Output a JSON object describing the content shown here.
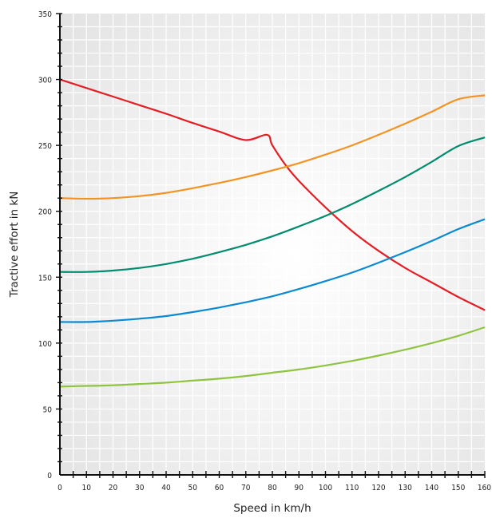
{
  "chart_data": {
    "type": "line",
    "title": "",
    "xlabel": "Speed in km/h",
    "ylabel": "Tractive effort in kN",
    "xlim": [
      0,
      160
    ],
    "ylim": [
      0,
      350
    ],
    "x_ticks": [
      0,
      10,
      20,
      30,
      40,
      50,
      60,
      70,
      80,
      90,
      100,
      110,
      120,
      130,
      140,
      150,
      160
    ],
    "y_ticks": [
      0,
      50,
      100,
      150,
      200,
      250,
      300,
      350
    ],
    "x_tick_labels": [
      "0",
      "10",
      "20",
      "30",
      "40",
      "50",
      "60",
      "70",
      "80",
      "90",
      "100",
      "110",
      "120",
      "130",
      "140",
      "150",
      "160"
    ],
    "y_tick_labels": [
      "0",
      "50",
      "100",
      "150",
      "200",
      "250",
      "300",
      "350"
    ],
    "grid": true,
    "legend": "none",
    "series": [
      {
        "color": "#e31e24",
        "x": [
          0,
          10,
          20,
          30,
          40,
          50,
          60,
          70,
          78,
          80,
          85,
          90,
          100,
          110,
          120,
          130,
          140,
          150,
          160
        ],
        "y": [
          300,
          293.5,
          287,
          280.5,
          274,
          267,
          260.5,
          254,
          258,
          250,
          235,
          223,
          203,
          185,
          170,
          157,
          146,
          135,
          125
        ]
      },
      {
        "color": "#f39324",
        "x": [
          0,
          10,
          20,
          30,
          40,
          50,
          60,
          70,
          80,
          90,
          100,
          110,
          120,
          130,
          140,
          150,
          160
        ],
        "y": [
          210,
          209.5,
          210,
          211.5,
          214,
          217.5,
          221.5,
          226,
          231,
          236.5,
          243,
          250,
          258,
          266.5,
          275.5,
          285,
          288
        ]
      },
      {
        "color": "#008c6e",
        "x": [
          0,
          10,
          20,
          30,
          40,
          50,
          60,
          70,
          80,
          90,
          100,
          110,
          120,
          130,
          140,
          150,
          160
        ],
        "y": [
          154,
          154,
          155,
          157,
          160,
          164,
          169,
          174.5,
          181,
          188.5,
          196.5,
          205.5,
          215.5,
          226,
          237.5,
          249.5,
          256
        ]
      },
      {
        "color": "#0a8ad2",
        "x": [
          0,
          10,
          20,
          30,
          40,
          50,
          60,
          70,
          80,
          90,
          100,
          110,
          120,
          130,
          140,
          150,
          160
        ],
        "y": [
          116,
          116,
          117,
          118.5,
          120.5,
          123.5,
          127,
          131,
          135.5,
          141,
          147,
          153.5,
          161,
          169,
          177.5,
          186.5,
          194
        ]
      },
      {
        "color": "#8ec43f",
        "x": [
          0,
          10,
          20,
          30,
          40,
          50,
          60,
          70,
          80,
          90,
          100,
          110,
          120,
          130,
          140,
          150,
          160
        ],
        "y": [
          67,
          67.5,
          68,
          69,
          70,
          71.5,
          73,
          75,
          77.5,
          80,
          83,
          86.5,
          90.5,
          95,
          100,
          105.5,
          112
        ]
      }
    ]
  }
}
